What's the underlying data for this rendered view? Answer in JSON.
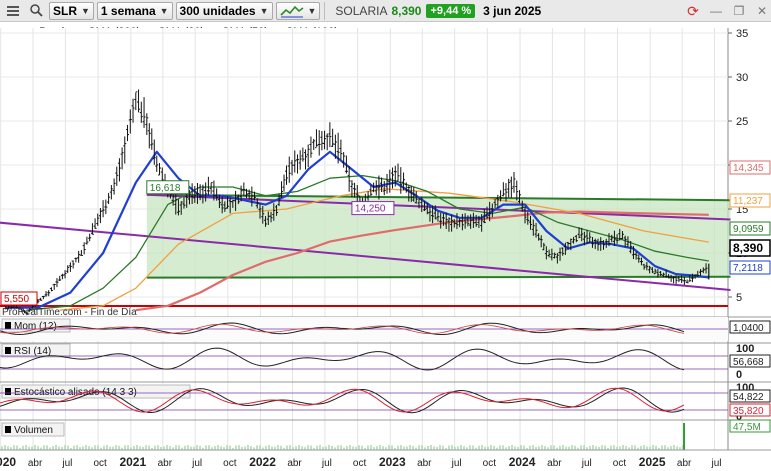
{
  "toolbar": {
    "symbol": "SLR",
    "timeframe": "1 semana",
    "units": "300 unidades",
    "ticker_name": "SOLARIA",
    "last_price": "8,390",
    "change_pct": "+9,44 %",
    "date": "3 jun 2025"
  },
  "legend": {
    "items": [
      {
        "label": "Precio",
        "color": "#000000"
      },
      {
        "label": "SMA (200)",
        "color": "#e06b6b"
      },
      {
        "label": "SMA (20)",
        "color": "#1f3fd0"
      },
      {
        "label": "SMA (50)",
        "color": "#2a7a2a"
      },
      {
        "label": "SMA (100)",
        "color": "#f0a040"
      }
    ]
  },
  "chart_data": {
    "type": "line",
    "title": "SLR - SOLARIA - 1 semana",
    "y_axis_ticks": [
      "35",
      "30",
      "25",
      "20",
      "15",
      "10",
      "5"
    ],
    "x_axis_ticks": [
      "2020",
      "abr",
      "jul",
      "oct",
      "2021",
      "abr",
      "jul",
      "oct",
      "2022",
      "abr",
      "jul",
      "oct",
      "2023",
      "abr",
      "jul",
      "oct",
      "2024",
      "abr",
      "jul",
      "oct",
      "2025",
      "abr",
      "jul"
    ],
    "price_series": [
      [
        "2020-01",
        3.8
      ],
      [
        "2020-02",
        3.8
      ],
      [
        "2020-03",
        3.2
      ],
      [
        "2020-04",
        4.5
      ],
      [
        "2020-05",
        5.5
      ],
      [
        "2020-06",
        7.0
      ],
      [
        "2020-07",
        8.5
      ],
      [
        "2020-08",
        10.0
      ],
      [
        "2020-09",
        12.5
      ],
      [
        "2020-10",
        15.0
      ],
      [
        "2020-11",
        17.5
      ],
      [
        "2020-12",
        22.0
      ],
      [
        "2021-01",
        27.5
      ],
      [
        "2021-02",
        25.0
      ],
      [
        "2021-03",
        20.0
      ],
      [
        "2021-04",
        17.5
      ],
      [
        "2021-05",
        15.0
      ],
      [
        "2021-06",
        16.5
      ],
      [
        "2021-07",
        16.8
      ],
      [
        "2021-08",
        17.5
      ],
      [
        "2021-09",
        15.5
      ],
      [
        "2021-10",
        15.5
      ],
      [
        "2021-11",
        17.0
      ],
      [
        "2021-12",
        16.5
      ],
      [
        "2022-01",
        13.5
      ],
      [
        "2022-02",
        15.0
      ],
      [
        "2022-03",
        19.0
      ],
      [
        "2022-04",
        20.5
      ],
      [
        "2022-05",
        21.5
      ],
      [
        "2022-06",
        23.0
      ],
      [
        "2022-07",
        23.0
      ],
      [
        "2022-08",
        21.5
      ],
      [
        "2022-09",
        17.5
      ],
      [
        "2022-10",
        15.5
      ],
      [
        "2022-11",
        17.5
      ],
      [
        "2022-12",
        17.5
      ],
      [
        "2023-01",
        19.0
      ],
      [
        "2023-02",
        17.5
      ],
      [
        "2023-03",
        16.0
      ],
      [
        "2023-04",
        15.0
      ],
      [
        "2023-05",
        14.0
      ],
      [
        "2023-06",
        13.5
      ],
      [
        "2023-07",
        13.5
      ],
      [
        "2023-08",
        13.5
      ],
      [
        "2023-09",
        13.5
      ],
      [
        "2023-10",
        15.0
      ],
      [
        "2023-11",
        17.0
      ],
      [
        "2023-12",
        18.0
      ],
      [
        "2024-01",
        14.5
      ],
      [
        "2024-02",
        12.5
      ],
      [
        "2024-03",
        10.0
      ],
      [
        "2024-04",
        9.5
      ],
      [
        "2024-05",
        11.0
      ],
      [
        "2024-06",
        12.0
      ],
      [
        "2024-07",
        11.5
      ],
      [
        "2024-08",
        11.0
      ],
      [
        "2024-09",
        11.5
      ],
      [
        "2024-10",
        12.0
      ],
      [
        "2024-11",
        10.0
      ],
      [
        "2024-12",
        8.5
      ],
      [
        "2025-01",
        7.8
      ],
      [
        "2025-02",
        7.5
      ],
      [
        "2025-03",
        7.0
      ],
      [
        "2025-04",
        6.8
      ],
      [
        "2025-05",
        7.5
      ],
      [
        "2025-06",
        8.39
      ]
    ],
    "sma20": [
      [
        "2020-01",
        3.8
      ],
      [
        "2020-04",
        3.8
      ],
      [
        "2020-07",
        5.5
      ],
      [
        "2020-10",
        10.0
      ],
      [
        "2021-01",
        18.0
      ],
      [
        "2021-03",
        21.5
      ],
      [
        "2021-05",
        18.5
      ],
      [
        "2021-07",
        16.5
      ],
      [
        "2021-09",
        16.5
      ],
      [
        "2021-11",
        16.0
      ],
      [
        "2022-01",
        15.5
      ],
      [
        "2022-03",
        16.5
      ],
      [
        "2022-05",
        19.5
      ],
      [
        "2022-07",
        21.5
      ],
      [
        "2022-09",
        19.5
      ],
      [
        "2022-11",
        17.5
      ],
      [
        "2023-01",
        18.0
      ],
      [
        "2023-03",
        16.5
      ],
      [
        "2023-05",
        14.8
      ],
      [
        "2023-07",
        14.0
      ],
      [
        "2023-09",
        14.0
      ],
      [
        "2023-11",
        15.5
      ],
      [
        "2024-01",
        15.5
      ],
      [
        "2024-03",
        12.5
      ],
      [
        "2024-05",
        10.5
      ],
      [
        "2024-07",
        11.2
      ],
      [
        "2024-09",
        11.0
      ],
      [
        "2024-11",
        10.5
      ],
      [
        "2025-01",
        8.5
      ],
      [
        "2025-03",
        7.6
      ],
      [
        "2025-05",
        7.4
      ],
      [
        "2025-06",
        7.2
      ]
    ],
    "sma50": [
      [
        "2020-03",
        3.5
      ],
      [
        "2020-07",
        4.0
      ],
      [
        "2020-10",
        6.0
      ],
      [
        "2021-01",
        9.5
      ],
      [
        "2021-04",
        15.5
      ],
      [
        "2021-07",
        17.5
      ],
      [
        "2021-10",
        17.5
      ],
      [
        "2022-01",
        16.5
      ],
      [
        "2022-04",
        17.0
      ],
      [
        "2022-07",
        18.5
      ],
      [
        "2022-10",
        18.8
      ],
      [
        "2023-01",
        18.2
      ],
      [
        "2023-04",
        17.0
      ],
      [
        "2023-07",
        15.0
      ],
      [
        "2023-10",
        14.5
      ],
      [
        "2024-01",
        15.2
      ],
      [
        "2024-04",
        13.5
      ],
      [
        "2024-07",
        12.5
      ],
      [
        "2024-10",
        11.5
      ],
      [
        "2025-01",
        10.2
      ],
      [
        "2025-04",
        9.5
      ],
      [
        "2025-06",
        9.0959
      ]
    ],
    "sma100": [
      [
        "2020-06",
        3.5
      ],
      [
        "2020-10",
        4.0
      ],
      [
        "2021-01",
        6.0
      ],
      [
        "2021-05",
        11.0
      ],
      [
        "2021-10",
        14.5
      ],
      [
        "2022-03",
        15.0
      ],
      [
        "2022-08",
        16.5
      ],
      [
        "2022-12",
        17.3
      ],
      [
        "2023-06",
        16.8
      ],
      [
        "2023-12",
        15.8
      ],
      [
        "2024-06",
        14.5
      ],
      [
        "2024-12",
        12.5
      ],
      [
        "2025-06",
        11.237
      ]
    ],
    "sma200": [
      [
        "2021-01",
        3.5
      ],
      [
        "2021-04",
        4.0
      ],
      [
        "2021-07",
        5.5
      ],
      [
        "2021-10",
        7.5
      ],
      [
        "2022-01",
        9.0
      ],
      [
        "2022-04",
        10.0
      ],
      [
        "2022-07",
        11.3
      ],
      [
        "2022-10",
        12.0
      ],
      [
        "2023-01",
        12.6
      ],
      [
        "2023-06",
        13.5
      ],
      [
        "2023-12",
        14.2
      ],
      [
        "2024-03",
        14.6
      ],
      [
        "2024-06",
        14.7
      ],
      [
        "2024-09",
        14.6
      ],
      [
        "2024-12",
        14.5
      ],
      [
        "2025-06",
        14.345
      ]
    ],
    "channel_lines": [
      {
        "color": "#2a7a2a",
        "from": [
          "2021-02",
          16.618
        ],
        "to": [
          "2025-08",
          16.0
        ]
      },
      {
        "color": "#2a7a2a",
        "from": [
          "2021-02",
          7.2
        ],
        "to": [
          "2025-08",
          7.3
        ]
      },
      {
        "color": "#8a2aa8",
        "from": [
          "2021-02",
          16.618
        ],
        "to": [
          "2025-08",
          13.8
        ]
      },
      {
        "color": "#8a2aa8",
        "from": [
          "2019-12",
          13.5
        ],
        "to": [
          "2025-08",
          5.8
        ]
      }
    ],
    "support_level": {
      "value": 5.55,
      "color": "#cc0000"
    },
    "annotations": [
      {
        "text": "16,618",
        "x": "2021-02",
        "y": 16.618,
        "color": "#2a7a2a"
      },
      {
        "text": "14,250",
        "x": "2022-09",
        "y": 14.25,
        "color": "#8a2aa8"
      },
      {
        "text": "5,550",
        "x": "2020-01",
        "y": 5.55,
        "color": "#cc0000"
      }
    ],
    "right_labels": [
      {
        "text": "14,345",
        "color": "#e06b6b"
      },
      {
        "text": "11,237",
        "color": "#f0a040"
      },
      {
        "text": "9,0959",
        "color": "#2a7a2a"
      },
      {
        "text": "8,390",
        "color": "#000000"
      },
      {
        "text": "7,2118",
        "color": "#1f3fd0"
      }
    ]
  },
  "indicators": {
    "source": "ProRealTime.com - Fin de Día",
    "mom": {
      "label": "Mom (12)",
      "value": "1,0400"
    },
    "rsi": {
      "label": "RSI (14)",
      "value": "56,668",
      "ticks": [
        "100",
        "0"
      ]
    },
    "stoch": {
      "label": "Estocástico alisado (14 3 3)",
      "values": [
        "54,822",
        "35,820"
      ],
      "ticks": [
        "100",
        "0"
      ]
    },
    "volume": {
      "label": "Volumen",
      "value": "47,5M"
    }
  }
}
